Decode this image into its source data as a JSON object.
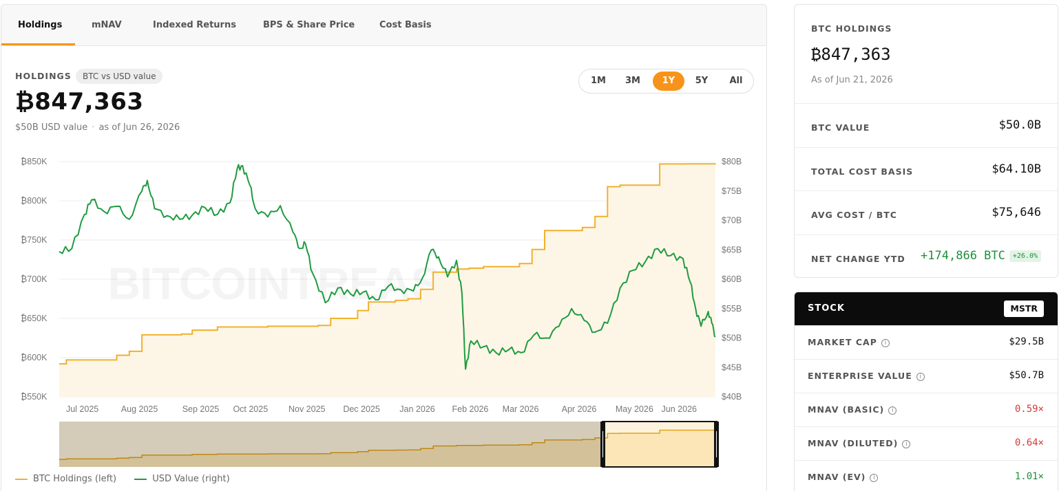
{
  "tabs": [
    "Holdings",
    "mNAV",
    "Indexed Returns",
    "BPS & Share Price",
    "Cost Basis"
  ],
  "holdings": {
    "label": "HOLDINGS",
    "pill": "BTC vs USD value",
    "value": "₿847,363",
    "usd_value": "$50B USD value",
    "as_of": "as of Jun 26, 2026",
    "range_options": [
      "1M",
      "3M",
      "1Y",
      "5Y",
      "All"
    ],
    "range_selected": "1Y"
  },
  "colors": {
    "accent": "#f7931a",
    "btc_line": "#f0b12b",
    "usd_line": "#1e9b3f",
    "area_fill": "#fdf6e7"
  },
  "chart_data": {
    "type": "line",
    "watermark": "BITCOINTREASURIES.NET",
    "x": [
      "Jul 2025",
      "Aug 2025",
      "Sep 2025",
      "Oct 2025",
      "Nov 2025",
      "Dec 2025",
      "Jan 2026",
      "Feb 2026",
      "Mar 2026",
      "Apr 2026",
      "May 2026",
      "Jun 2026"
    ],
    "y_left_ticks": [
      "₿850K",
      "₿800K",
      "₿750K",
      "₿700K",
      "₿650K",
      "₿600K",
      "₿550K"
    ],
    "y_right_ticks": [
      "$80B",
      "$75B",
      "$70B",
      "$65B",
      "$60B",
      "$55B",
      "$50B",
      "$45B",
      "$40B"
    ],
    "ylim_left": [
      550000,
      850000
    ],
    "ylim_right": [
      40,
      80
    ],
    "series": [
      {
        "name": "BTC Holdings (left)",
        "axis": "left",
        "step": true,
        "points": [
          [
            "2025-06-26",
            592000
          ],
          [
            "2025-06-30",
            597000
          ],
          [
            "2025-07-28",
            603000
          ],
          [
            "2025-08-04",
            608000
          ],
          [
            "2025-08-11",
            629000
          ],
          [
            "2025-09-02",
            630000
          ],
          [
            "2025-09-08",
            635000
          ],
          [
            "2025-09-22",
            639000
          ],
          [
            "2025-10-20",
            640000
          ],
          [
            "2025-11-17",
            641000
          ],
          [
            "2025-11-24",
            650000
          ],
          [
            "2025-12-09",
            660000
          ],
          [
            "2025-12-15",
            671000
          ],
          [
            "2025-12-30",
            673000
          ],
          [
            "2026-01-06",
            675000
          ],
          [
            "2026-01-13",
            687000
          ],
          [
            "2026-01-20",
            709000
          ],
          [
            "2026-02-02",
            713000
          ],
          [
            "2026-02-09",
            714000
          ],
          [
            "2026-02-17",
            716000
          ],
          [
            "2026-03-09",
            720000
          ],
          [
            "2026-03-16",
            738000
          ],
          [
            "2026-03-23",
            762000
          ],
          [
            "2026-04-13",
            766000
          ],
          [
            "2026-04-20",
            780000
          ],
          [
            "2026-04-27",
            818000
          ],
          [
            "2026-05-04",
            820000
          ],
          [
            "2026-05-26",
            847000
          ],
          [
            "2026-06-10",
            847200
          ],
          [
            "2026-06-26",
            847363
          ]
        ]
      },
      {
        "name": "USD Value (right)",
        "axis": "right",
        "step": false,
        "points": [
          [
            "2025-06-26",
            64.7
          ],
          [
            "2025-07-03",
            65.2
          ],
          [
            "2025-07-10",
            71.0
          ],
          [
            "2025-07-14",
            73.5
          ],
          [
            "2025-07-21",
            71.5
          ],
          [
            "2025-07-28",
            72.4
          ],
          [
            "2025-08-04",
            70.2
          ],
          [
            "2025-08-11",
            75.0
          ],
          [
            "2025-08-14",
            76.8
          ],
          [
            "2025-08-18",
            72.0
          ],
          [
            "2025-08-25",
            70.8
          ],
          [
            "2025-09-01",
            70.2
          ],
          [
            "2025-09-08",
            70.9
          ],
          [
            "2025-09-15",
            72.2
          ],
          [
            "2025-09-22",
            71.0
          ],
          [
            "2025-09-29",
            73.0
          ],
          [
            "2025-10-03",
            78.8
          ],
          [
            "2025-10-06",
            79.3
          ],
          [
            "2025-10-10",
            76.0
          ],
          [
            "2025-10-13",
            72.0
          ],
          [
            "2025-10-20",
            70.6
          ],
          [
            "2025-10-27",
            72.5
          ],
          [
            "2025-11-03",
            68.0
          ],
          [
            "2025-11-07",
            65.2
          ],
          [
            "2025-11-10",
            66.0
          ],
          [
            "2025-11-14",
            61.0
          ],
          [
            "2025-11-21",
            56.0
          ],
          [
            "2025-11-28",
            58.5
          ],
          [
            "2025-12-05",
            57.5
          ],
          [
            "2025-12-12",
            57.8
          ],
          [
            "2025-12-19",
            56.5
          ],
          [
            "2025-12-26",
            58.8
          ],
          [
            "2026-01-02",
            58.2
          ],
          [
            "2026-01-09",
            58.0
          ],
          [
            "2026-01-14",
            60.2
          ],
          [
            "2026-01-19",
            65.0
          ],
          [
            "2026-01-23",
            63.8
          ],
          [
            "2026-01-28",
            60.4
          ],
          [
            "2026-02-02",
            63.2
          ],
          [
            "2026-02-05",
            57.6
          ],
          [
            "2026-02-07",
            44.7
          ],
          [
            "2026-02-10",
            49.5
          ],
          [
            "2026-02-17",
            48.5
          ],
          [
            "2026-02-24",
            47.5
          ],
          [
            "2026-03-03",
            48.0
          ],
          [
            "2026-03-10",
            47.5
          ],
          [
            "2026-03-17",
            50.5
          ],
          [
            "2026-03-24",
            50.0
          ],
          [
            "2026-03-31",
            52.0
          ],
          [
            "2026-04-07",
            55.0
          ],
          [
            "2026-04-14",
            53.0
          ],
          [
            "2026-04-20",
            51.0
          ],
          [
            "2026-04-27",
            52.5
          ],
          [
            "2026-05-04",
            58.5
          ],
          [
            "2026-05-11",
            61.5
          ],
          [
            "2026-05-18",
            63.0
          ],
          [
            "2026-05-25",
            65.2
          ],
          [
            "2026-06-01",
            64.0
          ],
          [
            "2026-06-08",
            63.5
          ],
          [
            "2026-06-12",
            59.5
          ],
          [
            "2026-06-15",
            55.0
          ],
          [
            "2026-06-18",
            52.0
          ],
          [
            "2026-06-22",
            54.5
          ],
          [
            "2026-06-24",
            52.5
          ],
          [
            "2026-06-26",
            50.2
          ]
        ]
      }
    ],
    "legend": "bottom-left"
  },
  "legend": {
    "btc": "BTC Holdings (left)",
    "usd": "USD Value (right)"
  },
  "btc_card": {
    "title": "BTC HOLDINGS",
    "value": "₿847,363",
    "as_of": "As of Jun 21, 2026",
    "rows": [
      {
        "label": "BTC VALUE",
        "value": "$50.0B"
      },
      {
        "label": "TOTAL COST BASIS",
        "value": "$64.10B"
      },
      {
        "label": "AVG COST / BTC",
        "value": "$75,646"
      },
      {
        "label": "NET CHANGE YTD",
        "value": "+174,866 BTC",
        "badge": "+26.0%"
      }
    ]
  },
  "stock_card": {
    "title": "STOCK",
    "ticker": "MSTR",
    "rows": [
      {
        "label": "MARKET CAP",
        "value": "$29.5B"
      },
      {
        "label": "ENTERPRISE VALUE",
        "value": "$50.7B"
      },
      {
        "label": "MNAV (BASIC)",
        "value": "0.59×"
      },
      {
        "label": "MNAV (DILUTED)",
        "value": "0.64×"
      },
      {
        "label": "MNAV (EV)",
        "value": "1.01×"
      }
    ]
  }
}
